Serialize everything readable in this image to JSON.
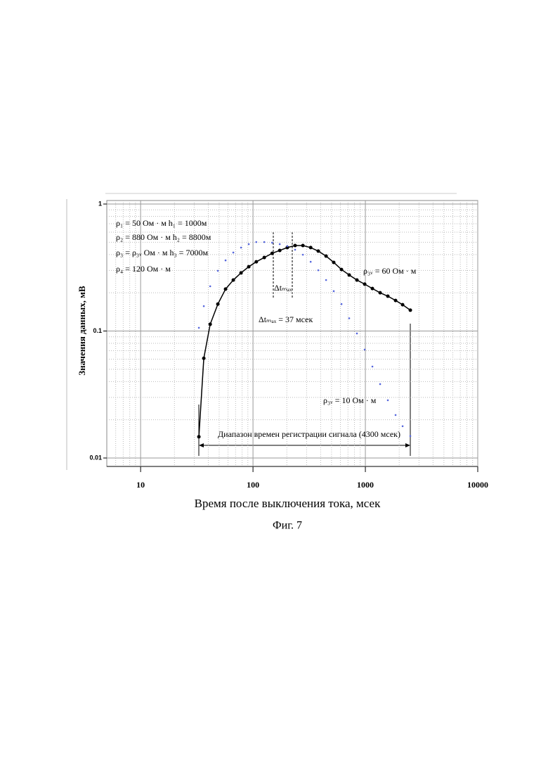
{
  "chart_data": {
    "type": "scatter",
    "xlabel": "Время после выключения тока, мсек",
    "ylabel": "Значения данных, мВ",
    "caption": "Фиг. 7",
    "xscale": "log",
    "yscale": "log",
    "grid": true,
    "xlim": [
      5,
      10000
    ],
    "ylim": [
      0.01,
      1
    ],
    "xticks": [
      10,
      100,
      1000,
      10000
    ],
    "yticks": [
      0.01,
      0.1,
      1
    ],
    "x": [
      33,
      36.5,
      41.6,
      48.7,
      57,
      66.8,
      78.3,
      91.7,
      107,
      126,
      148,
      173,
      202,
      237,
      278,
      326,
      381,
      447,
      523,
      613,
      718,
      841,
      986,
      1155,
      1353,
      1585,
      1857,
      2145,
      2512
    ],
    "series": [
      {
        "color": "#000000",
        "style": "line-markers",
        "values": [
          0.0147,
          0.061,
          0.113,
          0.163,
          0.214,
          0.252,
          0.287,
          0.321,
          0.351,
          0.379,
          0.409,
          0.431,
          0.454,
          0.471,
          0.471,
          0.454,
          0.426,
          0.389,
          0.347,
          0.305,
          0.276,
          0.252,
          0.234,
          0.216,
          0.2,
          0.188,
          0.174,
          0.161,
          0.146
        ]
      },
      {
        "color": "#5566dd",
        "style": "markers",
        "values": [
          0.106,
          0.157,
          0.225,
          0.298,
          0.36,
          0.415,
          0.454,
          0.483,
          0.502,
          0.502,
          0.496,
          0.483,
          0.466,
          0.437,
          0.399,
          0.351,
          0.301,
          0.252,
          0.206,
          0.163,
          0.126,
          0.0957,
          0.0714,
          0.0525,
          0.0382,
          0.0285,
          0.0218,
          0.0178,
          0.0149
        ]
      }
    ],
    "annotations": [
      "ρ₁ = 50 Ом · м   h₁ = 1000м",
      "ρ₂ = 880 Ом · м  h₂ = 8800м",
      "ρ₃ = ρ₃ᵥ Ом · м  h₃ = 7000м",
      "ρ₄ = 120 Ом · м",
      "Δtₘₐₓ",
      "Δtₘₐₓ = 37 мсек",
      "ρ₃ᵥ = 60 Ом · м",
      "ρ₃ᵥ = 10 Ом · м",
      "Диапазон времен регистрации сигнала (4300 мсек)"
    ]
  }
}
